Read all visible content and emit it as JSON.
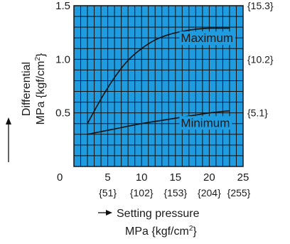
{
  "chart_data": {
    "type": "line",
    "title": "",
    "xlabel": "Setting pressure",
    "xlabel_units": "MPa {kgf/cm",
    "xlabel_units_sup": "2",
    "xlabel_units_end": "}",
    "ylabel": "Differential",
    "ylabel_units": "MPa {kgf/cm",
    "ylabel_units_sup": "2",
    "ylabel_units_end": "}",
    "xlim": [
      0,
      25
    ],
    "ylim": [
      0,
      1.5
    ],
    "x_ticks": [
      {
        "label": "0",
        "value": 0
      },
      {
        "label": "5",
        "value": 5
      },
      {
        "label": "10",
        "value": 10
      },
      {
        "label": "15",
        "value": 15
      },
      {
        "label": "20",
        "value": 20
      },
      {
        "label": "25",
        "value": 25
      }
    ],
    "x_ticks_secondary": [
      {
        "label": "{51}",
        "value": 5
      },
      {
        "label": "{102}",
        "value": 10
      },
      {
        "label": "{153}",
        "value": 15
      },
      {
        "label": "{204}",
        "value": 20
      },
      {
        "label": "{255}",
        "value": 25
      }
    ],
    "y_ticks": [
      {
        "label": "0.5",
        "value": 0.5
      },
      {
        "label": "1.0",
        "value": 1.0
      },
      {
        "label": "1.5",
        "value": 1.5
      }
    ],
    "y_ticks_secondary": [
      {
        "label": "{5.1}",
        "value": 0.5
      },
      {
        "label": "{10.2}",
        "value": 1.0
      },
      {
        "label": "{15.3}",
        "value": 1.5
      }
    ],
    "grid": true,
    "plot_background": "#1f9be0",
    "grid_color": "#111111",
    "line_color": "#111111",
    "series": [
      {
        "name": "Maximum",
        "x": [
          2,
          4,
          6,
          8,
          10,
          12,
          14,
          16,
          18,
          20,
          22,
          23
        ],
        "y": [
          0.4,
          0.63,
          0.83,
          0.99,
          1.1,
          1.18,
          1.23,
          1.26,
          1.28,
          1.29,
          1.29,
          1.29
        ]
      },
      {
        "name": "Minimum",
        "x": [
          2,
          6,
          10,
          14,
          18,
          20,
          23
        ],
        "y": [
          0.3,
          0.35,
          0.4,
          0.44,
          0.48,
          0.5,
          0.52
        ]
      }
    ],
    "annotations": [
      {
        "text": "Maximum",
        "series": "Maximum",
        "x": 15.8,
        "y": 1.16
      },
      {
        "text": "Minimum",
        "series": "Minimum",
        "x": 15.8,
        "y": 0.37
      }
    ]
  }
}
